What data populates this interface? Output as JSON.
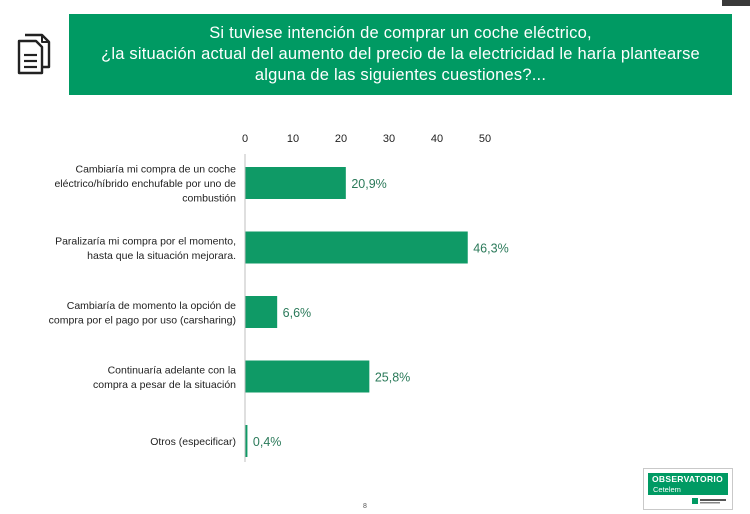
{
  "banner": {
    "line1": "Si tuviese intención de comprar un coche eléctrico,",
    "line2": "¿la situación actual del aumento del precio de la electricidad le haría plantearse",
    "line3": "alguna de las siguientes cuestiones?..."
  },
  "logo": {
    "title": "OBSERVATORIO",
    "subtitle": "Cetelem"
  },
  "page_number": "8",
  "colors": {
    "accent": "#009a63",
    "bar": "#0f9a66",
    "label_value": "#2b7a5a"
  },
  "chart_data": {
    "type": "bar",
    "orientation": "horizontal",
    "title": "",
    "xlabel": "",
    "ylabel": "",
    "xlim": [
      0,
      50
    ],
    "xticks": [
      0,
      10,
      20,
      30,
      40,
      50
    ],
    "xaxis_position": "top",
    "grid": false,
    "legend": "none",
    "categories": [
      [
        "Cambiaría mi compra de un coche",
        "eléctrico/híbrido enchufable por  uno de",
        "combustión"
      ],
      [
        "Paralizaría mi compra por el momento,",
        "hasta que la situación mejorara."
      ],
      [
        "Cambiaría de momento la opción de",
        "compra por el pago por uso (carsharing)"
      ],
      [
        "Continuaría adelante con la",
        "compra a pesar de la situación"
      ],
      [
        "Otros (especificar)"
      ]
    ],
    "values": [
      20.9,
      46.3,
      6.6,
      25.8,
      0.4
    ],
    "value_labels": [
      "20,9%",
      "46,3%",
      "6,6%",
      "25,8%",
      "0,4%"
    ]
  }
}
